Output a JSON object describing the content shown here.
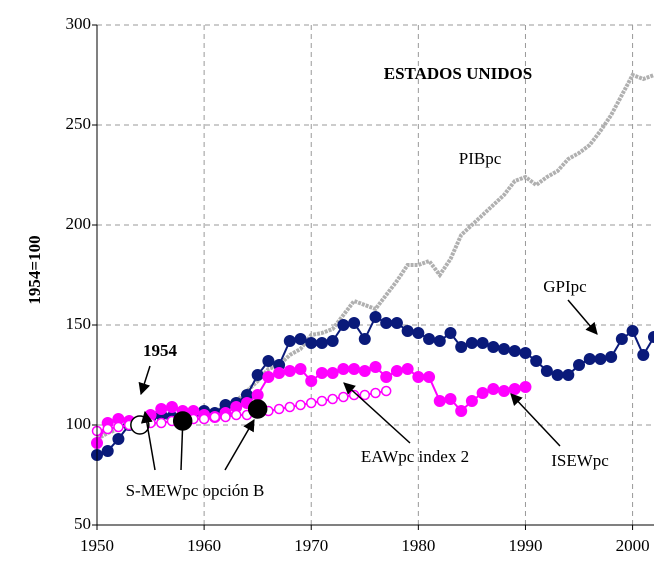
{
  "chart_data": {
    "type": "line",
    "title": "ESTADOS UNIDOS",
    "y_label": "1954=100",
    "annotation": "1954",
    "xlim": [
      1950,
      2002
    ],
    "xticks": [
      1950,
      1960,
      1970,
      1980,
      1990,
      2000
    ],
    "ylim": [
      50,
      300
    ],
    "yticks": [
      50,
      100,
      150,
      200,
      250,
      300
    ],
    "grid": true,
    "series": [
      {
        "name": "PIBpc",
        "color": "#b0b0b0",
        "marker": "none",
        "x": [
          1950,
          1951,
          1952,
          1953,
          1954,
          1955,
          1956,
          1957,
          1958,
          1959,
          1960,
          1961,
          1962,
          1963,
          1964,
          1965,
          1966,
          1967,
          1968,
          1969,
          1970,
          1971,
          1972,
          1973,
          1974,
          1975,
          1976,
          1977,
          1978,
          1979,
          1980,
          1981,
          1982,
          1983,
          1984,
          1985,
          1986,
          1987,
          1988,
          1989,
          1990,
          1991,
          1992,
          1993,
          1994,
          1995,
          1996,
          1997,
          1998,
          1999,
          2000,
          2001,
          2002
        ],
        "values": [
          93,
          96,
          98,
          101,
          100,
          104,
          104,
          104,
          102,
          106,
          106,
          106,
          110,
          112,
          117,
          122,
          128,
          130,
          135,
          138,
          145,
          146,
          148,
          155,
          162,
          160,
          158,
          165,
          172,
          180,
          180,
          182,
          175,
          183,
          195,
          200,
          205,
          210,
          215,
          222,
          224,
          220,
          224,
          227,
          233,
          236,
          240,
          247,
          255,
          265,
          275,
          273,
          275
        ]
      },
      {
        "name": "GPIpc",
        "color": "#0a1a7a",
        "marker": "filled",
        "x": [
          1950,
          1951,
          1952,
          1953,
          1954,
          1955,
          1956,
          1957,
          1958,
          1959,
          1960,
          1961,
          1962,
          1963,
          1964,
          1965,
          1966,
          1967,
          1968,
          1969,
          1970,
          1971,
          1972,
          1973,
          1974,
          1975,
          1976,
          1977,
          1978,
          1979,
          1980,
          1981,
          1982,
          1983,
          1984,
          1985,
          1986,
          1987,
          1988,
          1989,
          1990,
          1991,
          1992,
          1993,
          1994,
          1995,
          1996,
          1997,
          1998,
          1999,
          2000,
          2001,
          2002
        ],
        "values": [
          85,
          87,
          93,
          100,
          100,
          104,
          105,
          104,
          102,
          106,
          107,
          106,
          110,
          111,
          115,
          125,
          132,
          130,
          142,
          143,
          141,
          141,
          142,
          150,
          151,
          143,
          154,
          151,
          151,
          147,
          146,
          143,
          142,
          146,
          139,
          141,
          141,
          139,
          138,
          137,
          136,
          132,
          127,
          125,
          125,
          130,
          133,
          133,
          134,
          143,
          147,
          135,
          144
        ]
      },
      {
        "name": "ISEWpc",
        "color": "#ff00ff",
        "marker": "filled",
        "x": [
          1950,
          1951,
          1952,
          1953,
          1954,
          1955,
          1956,
          1957,
          1958,
          1959,
          1960,
          1961,
          1962,
          1963,
          1964,
          1965,
          1966,
          1967,
          1968,
          1969,
          1970,
          1971,
          1972,
          1973,
          1974,
          1975,
          1976,
          1977,
          1978,
          1979,
          1980,
          1981,
          1982,
          1983,
          1984,
          1985,
          1986,
          1987,
          1988,
          1989,
          1990
        ],
        "values": [
          91,
          101,
          103,
          102,
          100,
          105,
          108,
          109,
          107,
          107,
          105,
          104,
          106,
          109,
          111,
          115,
          124,
          126,
          127,
          128,
          122,
          126,
          126,
          128,
          128,
          127,
          129,
          124,
          127,
          128,
          124,
          124,
          112,
          113,
          107,
          112,
          116,
          118,
          117,
          118,
          119
        ]
      },
      {
        "name": "EAWpc index 2",
        "color": "#ff00ff",
        "marker": "open",
        "x": [
          1950,
          1951,
          1952,
          1953,
          1954,
          1955,
          1956,
          1957,
          1958,
          1959,
          1960,
          1961,
          1962,
          1963,
          1964,
          1965,
          1966,
          1967,
          1968,
          1969,
          1970,
          1971,
          1972,
          1973,
          1974,
          1975,
          1976,
          1977
        ],
        "values": [
          97,
          98,
          99,
          100,
          100,
          101,
          101,
          102,
          102,
          103,
          103,
          104,
          104,
          105,
          105,
          106,
          107,
          108,
          109,
          110,
          111,
          112,
          113,
          114,
          115,
          115,
          116,
          117
        ]
      },
      {
        "name": "S-MEWpc opción B",
        "color": "#000000",
        "marker": "big",
        "point_colors": [
          "#ffffff",
          "#000000",
          "#000000"
        ],
        "x": [
          1954,
          1958,
          1965
        ],
        "values": [
          100,
          102,
          108
        ]
      }
    ]
  }
}
